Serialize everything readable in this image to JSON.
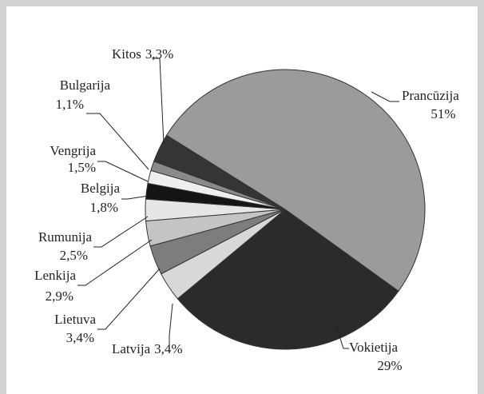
{
  "chart_data": {
    "type": "pie",
    "categories": [
      "Prancūzija",
      "Vokietija",
      "Latvija",
      "Lietuva",
      "Lenkija",
      "Rumunija",
      "Belgija",
      "Vengrija",
      "Bulgarija",
      "Kitos"
    ],
    "values": [
      51,
      29,
      3.4,
      3.4,
      2.9,
      2.5,
      1.8,
      1.5,
      1.1,
      3.3
    ],
    "value_labels": [
      "51%",
      "29%",
      "3,4%",
      "3,4%",
      "2,9%",
      "2,5%",
      "1,8%",
      "1,5%",
      "1,1%",
      "3,3%"
    ],
    "colors": [
      "#9b9b9b",
      "#2b2b2b",
      "#d8d8d8",
      "#7d7d7d",
      "#c4c4c4",
      "#e6e6e6",
      "#141414",
      "#efefef",
      "#8a8a8a",
      "#353535"
    ]
  }
}
